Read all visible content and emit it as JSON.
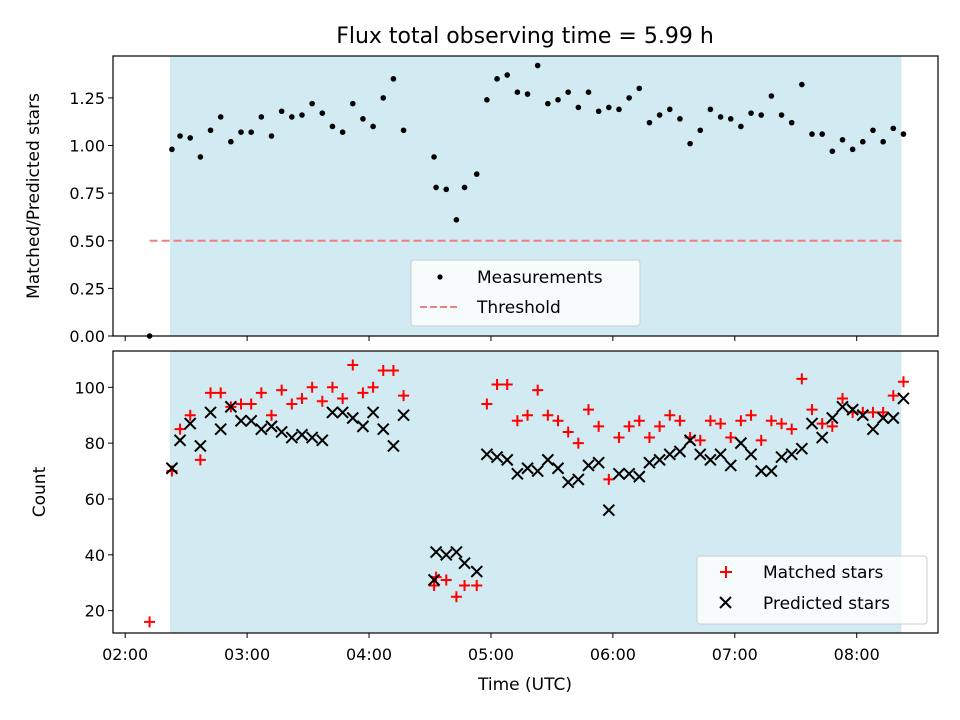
{
  "chart_data": {
    "title": "Flux total observing time = 5.99 h",
    "xlabel": "Time (UTC)",
    "x_ticks": [
      "02:00",
      "03:00",
      "04:00",
      "05:00",
      "06:00",
      "07:00",
      "08:00"
    ],
    "x_range": [
      "01:54",
      "08:40"
    ],
    "shaded_interval": [
      "02:22",
      "08:22"
    ],
    "shade_color": "#add8e6",
    "panels": [
      {
        "type": "scatter",
        "ylabel": "Matched/Predicted stars",
        "ylim": [
          0.0,
          1.47
        ],
        "y_ticks": [
          "0.00",
          "0.25",
          "0.50",
          "0.75",
          "1.00",
          "1.25"
        ],
        "legend_position": "lower-center",
        "threshold": {
          "name": "Threshold",
          "value": 0.5,
          "color": "#f08080",
          "style": "dashed",
          "x_start": "02:12",
          "x_end": "08:22"
        },
        "series": [
          {
            "name": "Measurements",
            "marker": "dot",
            "color": "#000000",
            "points": [
              [
                "02:12",
                0.0
              ],
              [
                "02:23",
                0.98
              ],
              [
                "02:27",
                1.05
              ],
              [
                "02:32",
                1.04
              ],
              [
                "02:37",
                0.94
              ],
              [
                "02:42",
                1.08
              ],
              [
                "02:47",
                1.15
              ],
              [
                "02:52",
                1.02
              ],
              [
                "02:57",
                1.07
              ],
              [
                "03:02",
                1.07
              ],
              [
                "03:07",
                1.15
              ],
              [
                "03:12",
                1.05
              ],
              [
                "03:17",
                1.18
              ],
              [
                "03:22",
                1.15
              ],
              [
                "03:27",
                1.16
              ],
              [
                "03:32",
                1.22
              ],
              [
                "03:37",
                1.17
              ],
              [
                "03:42",
                1.1
              ],
              [
                "03:47",
                1.07
              ],
              [
                "03:52",
                1.22
              ],
              [
                "03:57",
                1.14
              ],
              [
                "04:02",
                1.1
              ],
              [
                "04:07",
                1.25
              ],
              [
                "04:12",
                1.35
              ],
              [
                "04:17",
                1.08
              ],
              [
                "04:32",
                0.94
              ],
              [
                "04:33",
                0.78
              ],
              [
                "04:38",
                0.77
              ],
              [
                "04:43",
                0.61
              ],
              [
                "04:47",
                0.78
              ],
              [
                "04:53",
                0.85
              ],
              [
                "04:58",
                1.24
              ],
              [
                "05:03",
                1.35
              ],
              [
                "05:08",
                1.37
              ],
              [
                "05:13",
                1.28
              ],
              [
                "05:18",
                1.27
              ],
              [
                "05:23",
                1.42
              ],
              [
                "05:28",
                1.22
              ],
              [
                "05:33",
                1.24
              ],
              [
                "05:38",
                1.28
              ],
              [
                "05:43",
                1.2
              ],
              [
                "05:48",
                1.28
              ],
              [
                "05:53",
                1.18
              ],
              [
                "05:58",
                1.2
              ],
              [
                "06:03",
                1.19
              ],
              [
                "06:08",
                1.25
              ],
              [
                "06:13",
                1.3
              ],
              [
                "06:18",
                1.12
              ],
              [
                "06:23",
                1.16
              ],
              [
                "06:28",
                1.19
              ],
              [
                "06:33",
                1.14
              ],
              [
                "06:38",
                1.01
              ],
              [
                "06:43",
                1.08
              ],
              [
                "06:48",
                1.19
              ],
              [
                "06:53",
                1.15
              ],
              [
                "06:58",
                1.14
              ],
              [
                "07:03",
                1.1
              ],
              [
                "07:08",
                1.17
              ],
              [
                "07:13",
                1.16
              ],
              [
                "07:18",
                1.26
              ],
              [
                "07:23",
                1.16
              ],
              [
                "07:28",
                1.12
              ],
              [
                "07:33",
                1.32
              ],
              [
                "07:38",
                1.06
              ],
              [
                "07:43",
                1.06
              ],
              [
                "07:48",
                0.97
              ],
              [
                "07:53",
                1.03
              ],
              [
                "07:58",
                0.98
              ],
              [
                "08:03",
                1.02
              ],
              [
                "08:08",
                1.08
              ],
              [
                "08:13",
                1.02
              ],
              [
                "08:18",
                1.09
              ],
              [
                "08:23",
                1.06
              ]
            ]
          }
        ]
      },
      {
        "type": "scatter",
        "ylabel": "Count",
        "ylim": [
          12,
          113
        ],
        "y_ticks": [
          "20",
          "40",
          "60",
          "80",
          "100"
        ],
        "legend_position": "lower-right",
        "series": [
          {
            "name": "Matched stars",
            "marker": "plus",
            "color": "#ff0000",
            "points": [
              [
                "02:12",
                16
              ],
              [
                "02:23",
                70
              ],
              [
                "02:27",
                85
              ],
              [
                "02:32",
                90
              ],
              [
                "02:37",
                74
              ],
              [
                "02:42",
                98
              ],
              [
                "02:47",
                98
              ],
              [
                "02:52",
                93
              ],
              [
                "02:57",
                94
              ],
              [
                "03:02",
                94
              ],
              [
                "03:07",
                98
              ],
              [
                "03:12",
                90
              ],
              [
                "03:17",
                99
              ],
              [
                "03:22",
                94
              ],
              [
                "03:27",
                96
              ],
              [
                "03:32",
                100
              ],
              [
                "03:37",
                95
              ],
              [
                "03:42",
                100
              ],
              [
                "03:47",
                96
              ],
              [
                "03:52",
                108
              ],
              [
                "03:57",
                98
              ],
              [
                "04:02",
                100
              ],
              [
                "04:07",
                106
              ],
              [
                "04:12",
                106
              ],
              [
                "04:17",
                97
              ],
              [
                "04:32",
                29
              ],
              [
                "04:33",
                32
              ],
              [
                "04:38",
                31
              ],
              [
                "04:43",
                25
              ],
              [
                "04:47",
                29
              ],
              [
                "04:53",
                29
              ],
              [
                "04:58",
                94
              ],
              [
                "05:03",
                101
              ],
              [
                "05:08",
                101
              ],
              [
                "05:13",
                88
              ],
              [
                "05:18",
                90
              ],
              [
                "05:23",
                99
              ],
              [
                "05:28",
                90
              ],
              [
                "05:33",
                88
              ],
              [
                "05:38",
                84
              ],
              [
                "05:43",
                80
              ],
              [
                "05:48",
                92
              ],
              [
                "05:53",
                86
              ],
              [
                "05:58",
                67
              ],
              [
                "06:03",
                82
              ],
              [
                "06:08",
                86
              ],
              [
                "06:13",
                88
              ],
              [
                "06:18",
                82
              ],
              [
                "06:23",
                86
              ],
              [
                "06:28",
                90
              ],
              [
                "06:33",
                88
              ],
              [
                "06:38",
                82
              ],
              [
                "06:43",
                81
              ],
              [
                "06:48",
                88
              ],
              [
                "06:53",
                87
              ],
              [
                "06:58",
                82
              ],
              [
                "07:03",
                88
              ],
              [
                "07:08",
                90
              ],
              [
                "07:13",
                81
              ],
              [
                "07:18",
                88
              ],
              [
                "07:23",
                87
              ],
              [
                "07:28",
                85
              ],
              [
                "07:33",
                103
              ],
              [
                "07:38",
                92
              ],
              [
                "07:43",
                87
              ],
              [
                "07:48",
                86
              ],
              [
                "07:53",
                96
              ],
              [
                "07:58",
                91
              ],
              [
                "08:03",
                91
              ],
              [
                "08:08",
                91
              ],
              [
                "08:13",
                91
              ],
              [
                "08:18",
                97
              ],
              [
                "08:23",
                102
              ]
            ]
          },
          {
            "name": "Predicted stars",
            "marker": "x",
            "color": "#000000",
            "points": [
              [
                "02:23",
                71
              ],
              [
                "02:27",
                81
              ],
              [
                "02:32",
                87
              ],
              [
                "02:37",
                79
              ],
              [
                "02:42",
                91
              ],
              [
                "02:47",
                85
              ],
              [
                "02:52",
                93
              ],
              [
                "02:57",
                88
              ],
              [
                "03:02",
                88
              ],
              [
                "03:07",
                85
              ],
              [
                "03:12",
                86
              ],
              [
                "03:17",
                84
              ],
              [
                "03:22",
                82
              ],
              [
                "03:27",
                83
              ],
              [
                "03:32",
                82
              ],
              [
                "03:37",
                81
              ],
              [
                "03:42",
                91
              ],
              [
                "03:47",
                91
              ],
              [
                "03:52",
                89
              ],
              [
                "03:57",
                86
              ],
              [
                "04:02",
                91
              ],
              [
                "04:07",
                85
              ],
              [
                "04:12",
                79
              ],
              [
                "04:17",
                90
              ],
              [
                "04:32",
                31
              ],
              [
                "04:33",
                41
              ],
              [
                "04:38",
                40
              ],
              [
                "04:43",
                41
              ],
              [
                "04:47",
                37
              ],
              [
                "04:53",
                34
              ],
              [
                "04:58",
                76
              ],
              [
                "05:03",
                75
              ],
              [
                "05:08",
                74
              ],
              [
                "05:13",
                69
              ],
              [
                "05:18",
                71
              ],
              [
                "05:23",
                70
              ],
              [
                "05:28",
                74
              ],
              [
                "05:33",
                71
              ],
              [
                "05:38",
                66
              ],
              [
                "05:43",
                67
              ],
              [
                "05:48",
                72
              ],
              [
                "05:53",
                73
              ],
              [
                "05:58",
                56
              ],
              [
                "06:03",
                69
              ],
              [
                "06:08",
                69
              ],
              [
                "06:13",
                68
              ],
              [
                "06:18",
                73
              ],
              [
                "06:23",
                74
              ],
              [
                "06:28",
                76
              ],
              [
                "06:33",
                77
              ],
              [
                "06:38",
                81
              ],
              [
                "06:43",
                76
              ],
              [
                "06:48",
                74
              ],
              [
                "06:53",
                76
              ],
              [
                "06:58",
                72
              ],
              [
                "07:03",
                80
              ],
              [
                "07:08",
                76
              ],
              [
                "07:13",
                70
              ],
              [
                "07:18",
                70
              ],
              [
                "07:23",
                75
              ],
              [
                "07:28",
                76
              ],
              [
                "07:33",
                78
              ],
              [
                "07:38",
                87
              ],
              [
                "07:43",
                82
              ],
              [
                "07:48",
                89
              ],
              [
                "07:53",
                93
              ],
              [
                "07:58",
                92
              ],
              [
                "08:03",
                90
              ],
              [
                "08:08",
                85
              ],
              [
                "08:13",
                89
              ],
              [
                "08:18",
                89
              ],
              [
                "08:23",
                96
              ]
            ]
          }
        ]
      }
    ]
  }
}
